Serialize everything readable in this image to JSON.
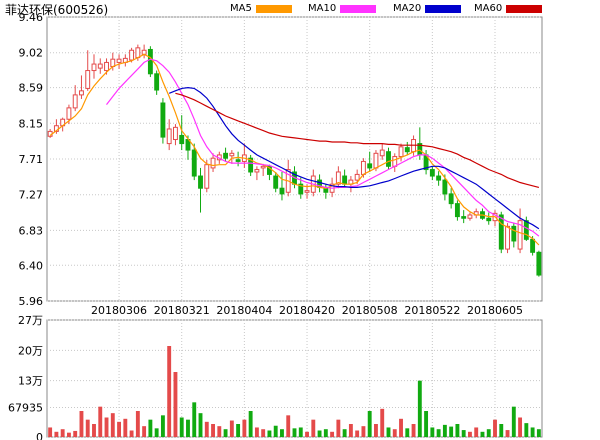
{
  "header": {
    "title": "菲达环保(600526)",
    "legend": [
      {
        "label": "MA5",
        "color": "#ff9900"
      },
      {
        "label": "MA10",
        "color": "#ff33ff"
      },
      {
        "label": "MA20",
        "color": "#0000cc"
      },
      {
        "label": "MA60",
        "color": "#cc0000"
      }
    ]
  },
  "colors": {
    "up": "#e44a4a",
    "down": "#11aa11",
    "grid": "#c8c8c8",
    "axis": "#000000"
  },
  "chart_data": [
    {
      "type": "candlestick",
      "y_ticks": [
        "9.46",
        "9.02",
        "8.59",
        "8.15",
        "7.71",
        "7.27",
        "6.83",
        "6.40",
        "5.96"
      ],
      "ylim": [
        5.96,
        9.46
      ],
      "x_labels": [
        "20180306",
        "20180321",
        "20180404",
        "20180420",
        "20180508",
        "20180522",
        "20180605"
      ],
      "x_label_index": [
        11,
        21,
        31,
        41,
        51,
        61,
        71
      ],
      "candles": [
        {
          "o": 7.99,
          "h": 8.08,
          "l": 7.97,
          "c": 8.05
        },
        {
          "o": 8.05,
          "h": 8.2,
          "l": 8.02,
          "c": 8.12
        },
        {
          "o": 8.12,
          "h": 8.22,
          "l": 8.05,
          "c": 8.2
        },
        {
          "o": 8.2,
          "h": 8.38,
          "l": 8.14,
          "c": 8.34
        },
        {
          "o": 8.34,
          "h": 8.62,
          "l": 8.3,
          "c": 8.5
        },
        {
          "o": 8.5,
          "h": 8.74,
          "l": 8.45,
          "c": 8.55
        },
        {
          "o": 8.58,
          "h": 9.05,
          "l": 8.55,
          "c": 8.8
        },
        {
          "o": 8.8,
          "h": 9.0,
          "l": 8.7,
          "c": 8.88
        },
        {
          "o": 8.83,
          "h": 8.95,
          "l": 8.76,
          "c": 8.88
        },
        {
          "o": 8.8,
          "h": 8.95,
          "l": 8.75,
          "c": 8.9
        },
        {
          "o": 8.85,
          "h": 9.02,
          "l": 8.8,
          "c": 8.94
        },
        {
          "o": 8.9,
          "h": 9.0,
          "l": 8.82,
          "c": 8.94
        },
        {
          "o": 8.9,
          "h": 9.0,
          "l": 8.85,
          "c": 8.95
        },
        {
          "o": 8.93,
          "h": 9.08,
          "l": 8.9,
          "c": 9.05
        },
        {
          "o": 8.96,
          "h": 9.12,
          "l": 8.92,
          "c": 9.08
        },
        {
          "o": 9.0,
          "h": 9.12,
          "l": 8.95,
          "c": 9.05
        },
        {
          "o": 9.06,
          "h": 9.1,
          "l": 8.72,
          "c": 8.76
        },
        {
          "o": 8.76,
          "h": 8.8,
          "l": 8.5,
          "c": 8.56
        },
        {
          "o": 8.4,
          "h": 8.46,
          "l": 7.9,
          "c": 7.98
        },
        {
          "o": 7.9,
          "h": 8.2,
          "l": 7.82,
          "c": 8.08
        },
        {
          "o": 7.95,
          "h": 8.14,
          "l": 7.88,
          "c": 8.1
        },
        {
          "o": 8.0,
          "h": 8.25,
          "l": 7.82,
          "c": 7.9
        },
        {
          "o": 7.95,
          "h": 8.0,
          "l": 7.7,
          "c": 7.82
        },
        {
          "o": 7.82,
          "h": 7.9,
          "l": 7.45,
          "c": 7.5
        },
        {
          "o": 7.5,
          "h": 7.6,
          "l": 7.05,
          "c": 7.35
        },
        {
          "o": 7.35,
          "h": 7.7,
          "l": 7.3,
          "c": 7.64
        },
        {
          "o": 7.6,
          "h": 7.78,
          "l": 7.55,
          "c": 7.72
        },
        {
          "o": 7.7,
          "h": 7.8,
          "l": 7.65,
          "c": 7.76
        },
        {
          "o": 7.78,
          "h": 7.85,
          "l": 7.68,
          "c": 7.72
        },
        {
          "o": 7.75,
          "h": 7.82,
          "l": 7.65,
          "c": 7.78
        },
        {
          "o": 7.7,
          "h": 7.8,
          "l": 7.62,
          "c": 7.68
        },
        {
          "o": 7.68,
          "h": 7.9,
          "l": 7.6,
          "c": 7.76
        },
        {
          "o": 7.72,
          "h": 7.76,
          "l": 7.5,
          "c": 7.55
        },
        {
          "o": 7.55,
          "h": 7.62,
          "l": 7.45,
          "c": 7.58
        },
        {
          "o": 7.6,
          "h": 7.65,
          "l": 7.5,
          "c": 7.62
        },
        {
          "o": 7.62,
          "h": 7.64,
          "l": 7.45,
          "c": 7.52
        },
        {
          "o": 7.5,
          "h": 7.55,
          "l": 7.3,
          "c": 7.35
        },
        {
          "o": 7.35,
          "h": 7.55,
          "l": 7.2,
          "c": 7.28
        },
        {
          "o": 7.3,
          "h": 7.7,
          "l": 7.25,
          "c": 7.58
        },
        {
          "o": 7.55,
          "h": 7.62,
          "l": 7.35,
          "c": 7.4
        },
        {
          "o": 7.4,
          "h": 7.48,
          "l": 7.22,
          "c": 7.28
        },
        {
          "o": 7.3,
          "h": 7.4,
          "l": 7.22,
          "c": 7.32
        },
        {
          "o": 7.3,
          "h": 7.58,
          "l": 7.25,
          "c": 7.5
        },
        {
          "o": 7.45,
          "h": 7.52,
          "l": 7.3,
          "c": 7.36
        },
        {
          "o": 7.36,
          "h": 7.4,
          "l": 7.22,
          "c": 7.3
        },
        {
          "o": 7.3,
          "h": 7.48,
          "l": 7.24,
          "c": 7.4
        },
        {
          "o": 7.4,
          "h": 7.62,
          "l": 7.35,
          "c": 7.55
        },
        {
          "o": 7.5,
          "h": 7.58,
          "l": 7.36,
          "c": 7.4
        },
        {
          "o": 7.4,
          "h": 7.5,
          "l": 7.3,
          "c": 7.45
        },
        {
          "o": 7.45,
          "h": 7.58,
          "l": 7.4,
          "c": 7.52
        },
        {
          "o": 7.52,
          "h": 7.72,
          "l": 7.48,
          "c": 7.68
        },
        {
          "o": 7.65,
          "h": 7.8,
          "l": 7.55,
          "c": 7.6
        },
        {
          "o": 7.6,
          "h": 7.82,
          "l": 7.56,
          "c": 7.78
        },
        {
          "o": 7.75,
          "h": 7.9,
          "l": 7.7,
          "c": 7.82
        },
        {
          "o": 7.8,
          "h": 7.85,
          "l": 7.58,
          "c": 7.62
        },
        {
          "o": 7.62,
          "h": 7.78,
          "l": 7.55,
          "c": 7.74
        },
        {
          "o": 7.74,
          "h": 7.9,
          "l": 7.68,
          "c": 7.86
        },
        {
          "o": 7.85,
          "h": 7.92,
          "l": 7.76,
          "c": 7.8
        },
        {
          "o": 7.8,
          "h": 8.0,
          "l": 7.75,
          "c": 7.95
        },
        {
          "o": 7.9,
          "h": 8.1,
          "l": 7.7,
          "c": 7.76
        },
        {
          "o": 7.76,
          "h": 7.82,
          "l": 7.52,
          "c": 7.58
        },
        {
          "o": 7.58,
          "h": 7.62,
          "l": 7.45,
          "c": 7.5
        },
        {
          "o": 7.5,
          "h": 7.56,
          "l": 7.38,
          "c": 7.45
        },
        {
          "o": 7.45,
          "h": 7.52,
          "l": 7.2,
          "c": 7.28
        },
        {
          "o": 7.28,
          "h": 7.35,
          "l": 7.1,
          "c": 7.16
        },
        {
          "o": 7.16,
          "h": 7.2,
          "l": 6.95,
          "c": 7.0
        },
        {
          "o": 7.0,
          "h": 7.08,
          "l": 6.92,
          "c": 6.98
        },
        {
          "o": 6.98,
          "h": 7.05,
          "l": 6.95,
          "c": 7.02
        },
        {
          "o": 7.02,
          "h": 7.1,
          "l": 6.98,
          "c": 7.06
        },
        {
          "o": 7.06,
          "h": 7.1,
          "l": 6.96,
          "c": 6.98
        },
        {
          "o": 6.98,
          "h": 7.05,
          "l": 6.9,
          "c": 6.95
        },
        {
          "o": 6.95,
          "h": 7.08,
          "l": 6.88,
          "c": 7.04
        },
        {
          "o": 7.02,
          "h": 7.06,
          "l": 6.55,
          "c": 6.6
        },
        {
          "o": 6.6,
          "h": 6.92,
          "l": 6.55,
          "c": 6.88
        },
        {
          "o": 6.88,
          "h": 6.92,
          "l": 6.62,
          "c": 6.7
        },
        {
          "o": 6.6,
          "h": 7.1,
          "l": 6.55,
          "c": 6.95
        },
        {
          "o": 6.95,
          "h": 7.0,
          "l": 6.7,
          "c": 6.72
        },
        {
          "o": 6.72,
          "h": 6.76,
          "l": 6.52,
          "c": 6.56
        },
        {
          "o": 6.56,
          "h": 6.58,
          "l": 6.26,
          "c": 6.28
        }
      ],
      "ma5": [
        8.0,
        8.06,
        8.12,
        8.18,
        8.24,
        8.33,
        8.5,
        8.61,
        8.7,
        8.78,
        8.85,
        8.88,
        8.9,
        8.92,
        8.96,
        9.0,
        8.96,
        8.86,
        8.66,
        8.48,
        8.28,
        8.06,
        7.96,
        7.86,
        7.72,
        7.65,
        7.63,
        7.64,
        7.64,
        7.72,
        7.73,
        7.72,
        7.7,
        7.66,
        7.64,
        7.6,
        7.54,
        7.46,
        7.44,
        7.4,
        7.38,
        7.37,
        7.38,
        7.36,
        7.35,
        7.38,
        7.42,
        7.4,
        7.4,
        7.42,
        7.52,
        7.56,
        7.6,
        7.64,
        7.68,
        7.7,
        7.73,
        7.76,
        7.8,
        7.82,
        7.76,
        7.65,
        7.58,
        7.48,
        7.37,
        7.22,
        7.12,
        7.06,
        7.02,
        7.02,
        7.0,
        7.0,
        6.91,
        6.87,
        6.83,
        6.8,
        6.78,
        6.73,
        6.65
      ],
      "ma10": [
        null,
        null,
        null,
        null,
        null,
        null,
        null,
        null,
        null,
        8.38,
        8.48,
        8.58,
        8.66,
        8.74,
        8.82,
        8.9,
        8.94,
        8.92,
        8.86,
        8.78,
        8.66,
        8.52,
        8.38,
        8.2,
        8.0,
        7.86,
        7.76,
        7.72,
        7.68,
        7.66,
        7.66,
        7.66,
        7.66,
        7.65,
        7.64,
        7.63,
        7.6,
        7.56,
        7.52,
        7.48,
        7.45,
        7.42,
        7.4,
        7.38,
        7.36,
        7.35,
        7.36,
        7.36,
        7.37,
        7.38,
        7.42,
        7.46,
        7.5,
        7.54,
        7.58,
        7.62,
        7.66,
        7.7,
        7.74,
        7.76,
        7.76,
        7.72,
        7.66,
        7.6,
        7.52,
        7.44,
        7.36,
        7.28,
        7.2,
        7.14,
        7.06,
        7.02,
        6.98,
        6.94,
        6.92,
        6.9,
        6.86,
        6.82,
        6.76
      ],
      "ma20": [
        null,
        null,
        null,
        null,
        null,
        null,
        null,
        null,
        null,
        null,
        null,
        null,
        null,
        null,
        null,
        null,
        null,
        null,
        null,
        8.52,
        8.55,
        8.58,
        8.59,
        8.58,
        8.53,
        8.46,
        8.36,
        8.24,
        8.12,
        8.02,
        7.94,
        7.88,
        7.82,
        7.76,
        7.72,
        7.68,
        7.64,
        7.6,
        7.56,
        7.52,
        7.49,
        7.46,
        7.44,
        7.42,
        7.4,
        7.38,
        7.37,
        7.37,
        7.36,
        7.36,
        7.37,
        7.38,
        7.4,
        7.42,
        7.44,
        7.47,
        7.5,
        7.53,
        7.56,
        7.58,
        7.6,
        7.62,
        7.62,
        7.6,
        7.56,
        7.52,
        7.48,
        7.44,
        7.4,
        7.34,
        7.28,
        7.22,
        7.16,
        7.1,
        7.04,
        6.98,
        6.94,
        6.9,
        6.85
      ],
      "ma60": [
        null,
        null,
        null,
        null,
        null,
        null,
        null,
        null,
        null,
        null,
        null,
        null,
        null,
        null,
        null,
        null,
        null,
        null,
        null,
        null,
        8.52,
        8.5,
        8.47,
        8.44,
        8.4,
        8.36,
        8.32,
        8.28,
        8.24,
        8.21,
        8.18,
        8.15,
        8.12,
        8.09,
        8.06,
        8.03,
        8.01,
        7.99,
        7.98,
        7.97,
        7.96,
        7.95,
        7.94,
        7.93,
        7.93,
        7.92,
        7.92,
        7.92,
        7.91,
        7.91,
        7.9,
        7.9,
        7.9,
        7.9,
        7.89,
        7.89,
        7.88,
        7.88,
        7.88,
        7.88,
        7.87,
        7.86,
        7.84,
        7.82,
        7.8,
        7.77,
        7.73,
        7.7,
        7.66,
        7.62,
        7.58,
        7.55,
        7.52,
        7.48,
        7.45,
        7.42,
        7.4,
        7.38,
        7.36
      ]
    },
    {
      "type": "bar",
      "y_ticks": [
        "27万",
        "20万",
        "13万",
        "67935",
        "0"
      ],
      "ylim": [
        0,
        270000
      ],
      "tick_values": [
        270000,
        200000,
        130000,
        67935,
        0
      ],
      "volumes": [
        22000,
        12000,
        18000,
        10000,
        14000,
        60000,
        40000,
        30000,
        70000,
        45000,
        55000,
        35000,
        42000,
        15000,
        60000,
        25000,
        40000,
        20000,
        50000,
        210000,
        150000,
        45000,
        40000,
        80000,
        55000,
        35000,
        30000,
        25000,
        18000,
        38000,
        30000,
        40000,
        60000,
        22000,
        18000,
        15000,
        26000,
        18000,
        50000,
        20000,
        22000,
        12000,
        40000,
        15000,
        18000,
        12000,
        40000,
        18000,
        30000,
        15000,
        25000,
        60000,
        30000,
        65000,
        22000,
        18000,
        42000,
        20000,
        30000,
        130000,
        60000,
        22000,
        18000,
        28000,
        24000,
        30000,
        16000,
        12000,
        22000,
        12000,
        18000,
        40000,
        30000,
        16000,
        70000,
        45000,
        32000,
        22000,
        18000
      ]
    }
  ]
}
